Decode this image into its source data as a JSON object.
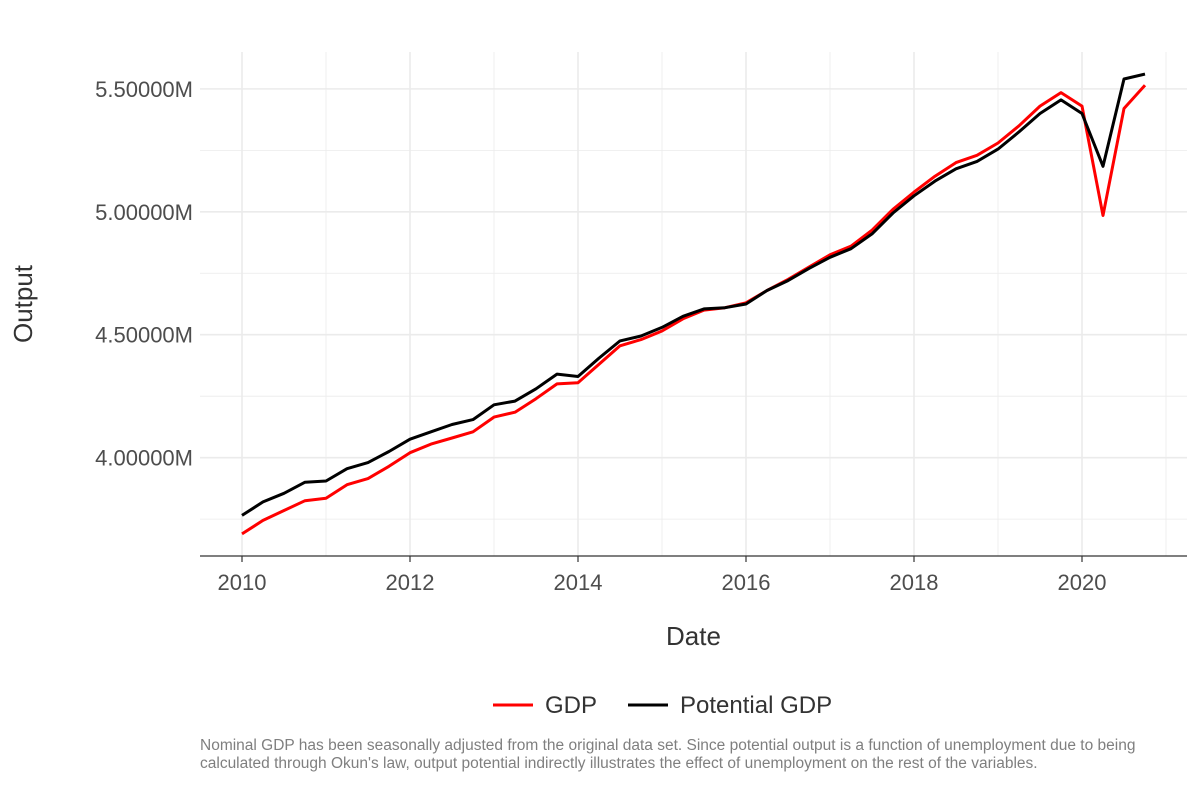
{
  "chart_data": {
    "type": "line",
    "title": "",
    "xlabel": "Date",
    "ylabel": "Output",
    "x_ticks": [
      "2010",
      "2012",
      "2014",
      "2016",
      "2018",
      "2020"
    ],
    "y_ticks": [
      "4.00000M",
      "4.50000M",
      "5.00000M",
      "5.50000M"
    ],
    "xlim": [
      2009.5,
      2021.25
    ],
    "ylim": [
      3.6,
      5.65
    ],
    "grid": true,
    "legend_position": "bottom",
    "x": [
      2010.0,
      2010.25,
      2010.5,
      2010.75,
      2011.0,
      2011.25,
      2011.5,
      2011.75,
      2012.0,
      2012.25,
      2012.5,
      2012.75,
      2013.0,
      2013.25,
      2013.5,
      2013.75,
      2014.0,
      2014.25,
      2014.5,
      2014.75,
      2015.0,
      2015.25,
      2015.5,
      2015.75,
      2016.0,
      2016.25,
      2016.5,
      2016.75,
      2017.0,
      2017.25,
      2017.5,
      2017.75,
      2018.0,
      2018.25,
      2018.5,
      2018.75,
      2019.0,
      2019.25,
      2019.5,
      2019.75,
      2020.0,
      2020.25,
      2020.5,
      2020.75
    ],
    "series": [
      {
        "name": "GDP",
        "color": "#ff0000",
        "values": [
          3.69,
          3.745,
          3.785,
          3.825,
          3.835,
          3.89,
          3.915,
          3.965,
          4.02,
          4.055,
          4.08,
          4.105,
          4.165,
          4.185,
          4.24,
          4.3,
          4.305,
          4.38,
          4.455,
          4.48,
          4.515,
          4.565,
          4.6,
          4.61,
          4.63,
          4.68,
          4.725,
          4.775,
          4.825,
          4.86,
          4.925,
          5.01,
          5.08,
          5.145,
          5.2,
          5.23,
          5.28,
          5.35,
          5.43,
          5.485,
          5.43,
          4.985,
          5.42,
          5.515
        ]
      },
      {
        "name": "Potential GDP",
        "color": "#000000",
        "values": [
          3.765,
          3.82,
          3.855,
          3.9,
          3.905,
          3.955,
          3.98,
          4.025,
          4.075,
          4.105,
          4.135,
          4.155,
          4.215,
          4.23,
          4.28,
          4.34,
          4.33,
          4.405,
          4.475,
          4.495,
          4.53,
          4.575,
          4.605,
          4.61,
          4.625,
          4.68,
          4.72,
          4.77,
          4.815,
          4.85,
          4.91,
          4.995,
          5.065,
          5.125,
          5.175,
          5.205,
          5.255,
          5.325,
          5.4,
          5.455,
          5.4,
          5.185,
          5.54,
          5.56
        ]
      }
    ]
  },
  "caption": "Nominal GDP has been seasonally adjusted from the original data set. Since potential output is a function of unemployment due to being calculated through Okun's law, output potential indirectly illustrates the effect of unemployment on the rest of the variables."
}
